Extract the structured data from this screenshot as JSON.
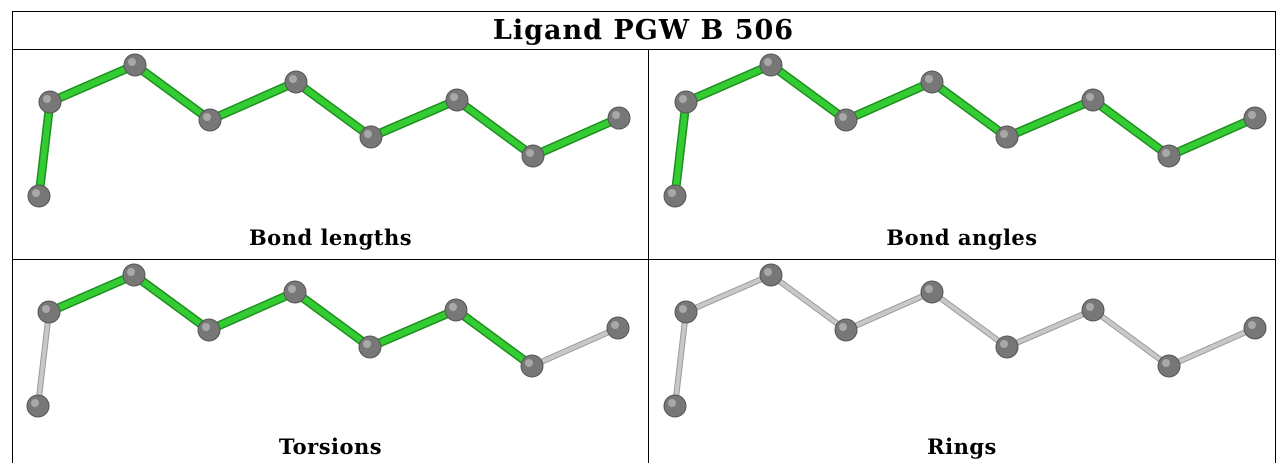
{
  "title": "Ligand PGW B 506",
  "colors": {
    "highlight_bond": "#33cc33",
    "normal_bond": "#c8c8c8",
    "atom": "#777777"
  },
  "panels": [
    {
      "label": "Bond lengths",
      "highlighted_bonds": [
        true,
        true,
        true,
        true,
        true,
        true,
        true,
        true
      ]
    },
    {
      "label": "Bond angles",
      "highlighted_bonds": [
        true,
        true,
        true,
        true,
        true,
        true,
        true,
        true
      ]
    },
    {
      "label": "Torsions",
      "highlighted_bonds": [
        false,
        true,
        true,
        true,
        true,
        true,
        true,
        false
      ]
    },
    {
      "label": "Rings",
      "highlighted_bonds": [
        false,
        false,
        false,
        false,
        false,
        false,
        false,
        false
      ]
    }
  ]
}
